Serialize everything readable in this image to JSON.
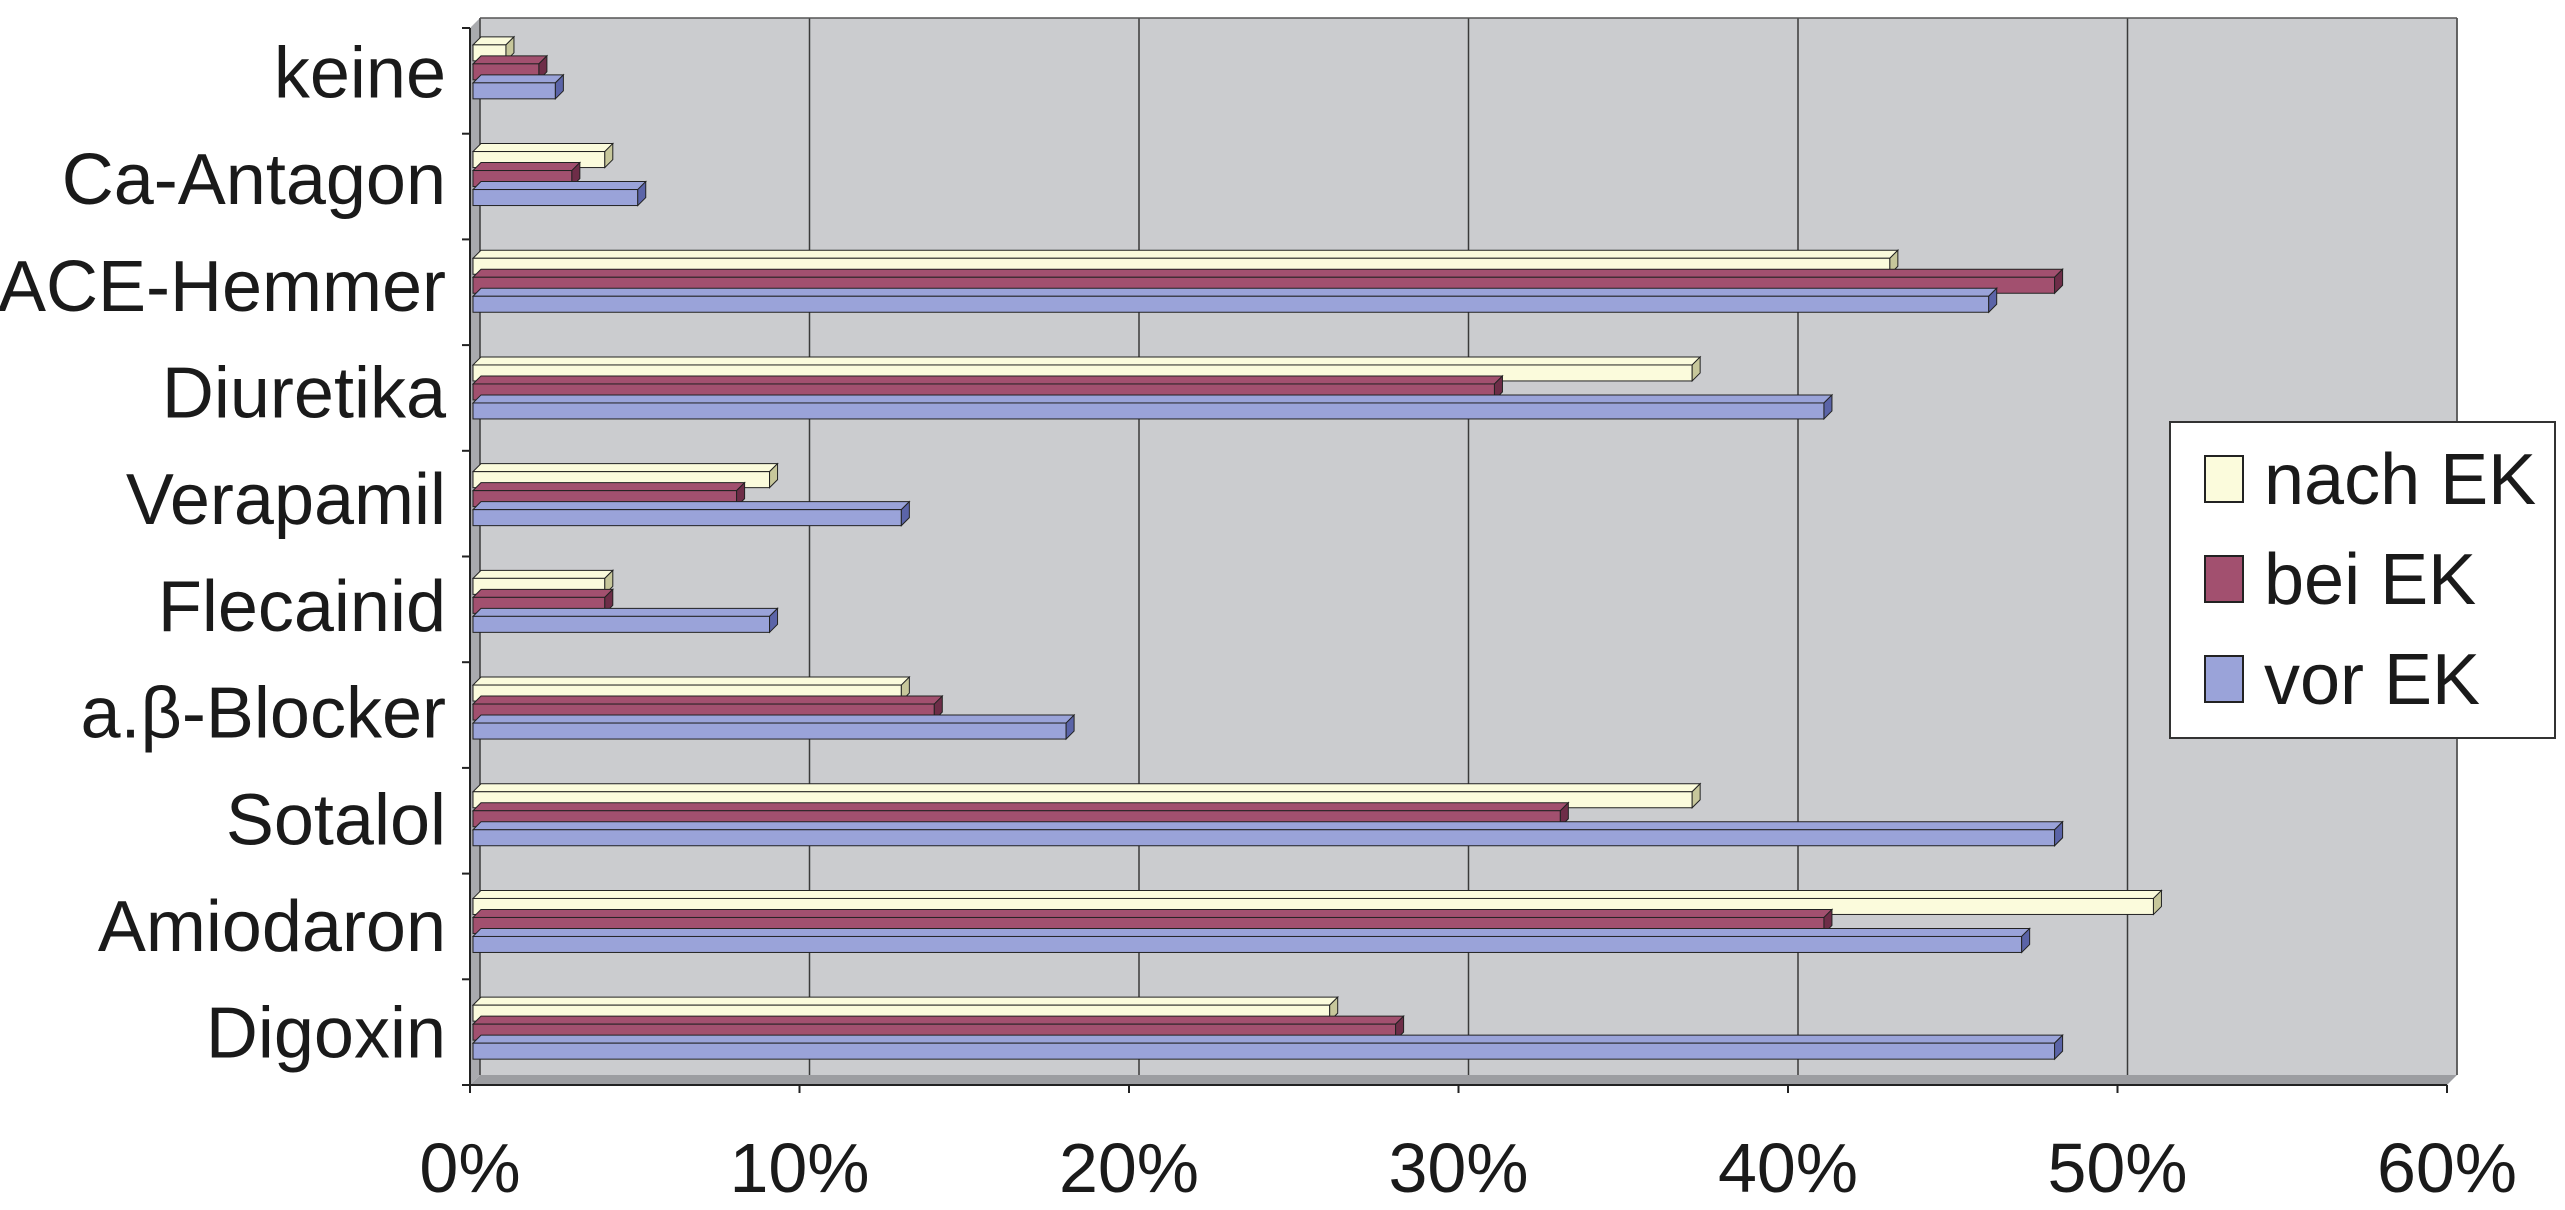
{
  "chart_data": {
    "type": "bar",
    "orientation": "horizontal",
    "style": "3d",
    "categories": [
      "keine",
      "Ca-Antagon",
      "ACE-Hemmer",
      "Diuretika",
      "Verapamil",
      "Flecainid",
      "a.β-Blocker",
      "Sotalol",
      "Amiodaron",
      "Digoxin"
    ],
    "series": [
      {
        "name": "nach EK",
        "color": "#fbfbdc",
        "side": "#c7c79b",
        "values": [
          1,
          4,
          43,
          37,
          9,
          4,
          13,
          37,
          51,
          26
        ]
      },
      {
        "name": "bei EK",
        "color": "#a2506f",
        "side": "#6e2d48",
        "values": [
          2,
          3,
          48,
          31,
          8,
          4,
          14,
          33,
          41,
          28
        ]
      },
      {
        "name": "vor EK",
        "color": "#9aa3d9",
        "side": "#5b64a8",
        "values": [
          2.5,
          5,
          46,
          41,
          13,
          9,
          18,
          48,
          47,
          48
        ]
      }
    ],
    "x_ticks": [
      "0%",
      "10%",
      "20%",
      "30%",
      "40%",
      "50%",
      "60%"
    ],
    "xlim": [
      0,
      60
    ],
    "grid": true,
    "plot_background": "#cbcccf",
    "legend_position": "right",
    "title": "",
    "xlabel": "",
    "ylabel": ""
  }
}
